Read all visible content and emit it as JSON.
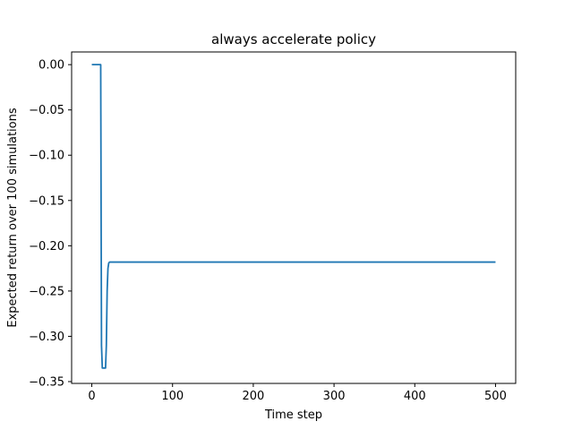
{
  "chart_data": {
    "type": "line",
    "title": "always accelerate policy",
    "xlabel": "Time step",
    "ylabel": "Expected return over 100 simulations",
    "xlim": [
      -25,
      525
    ],
    "ylim": [
      -0.352,
      0.014
    ],
    "xticks": [
      0,
      100,
      200,
      300,
      400,
      500
    ],
    "xtick_labels": [
      "0",
      "100",
      "200",
      "300",
      "400",
      "500"
    ],
    "yticks": [
      0.0,
      -0.05,
      -0.1,
      -0.15,
      -0.2,
      -0.25,
      -0.3,
      -0.35
    ],
    "ytick_labels": [
      "0.00",
      "−0.05",
      "−0.10",
      "−0.15",
      "−0.20",
      "−0.25",
      "−0.30",
      "−0.35"
    ],
    "grid": false,
    "legend": "none",
    "series": [
      {
        "color": "#1f77b4",
        "x": [
          0,
          11,
          12,
          13,
          15,
          17,
          18,
          19,
          20,
          21,
          22,
          500
        ],
        "y": [
          0.0,
          0.0,
          -0.31,
          -0.335,
          -0.335,
          -0.335,
          -0.31,
          -0.25,
          -0.225,
          -0.219,
          -0.218,
          -0.218
        ]
      }
    ]
  }
}
